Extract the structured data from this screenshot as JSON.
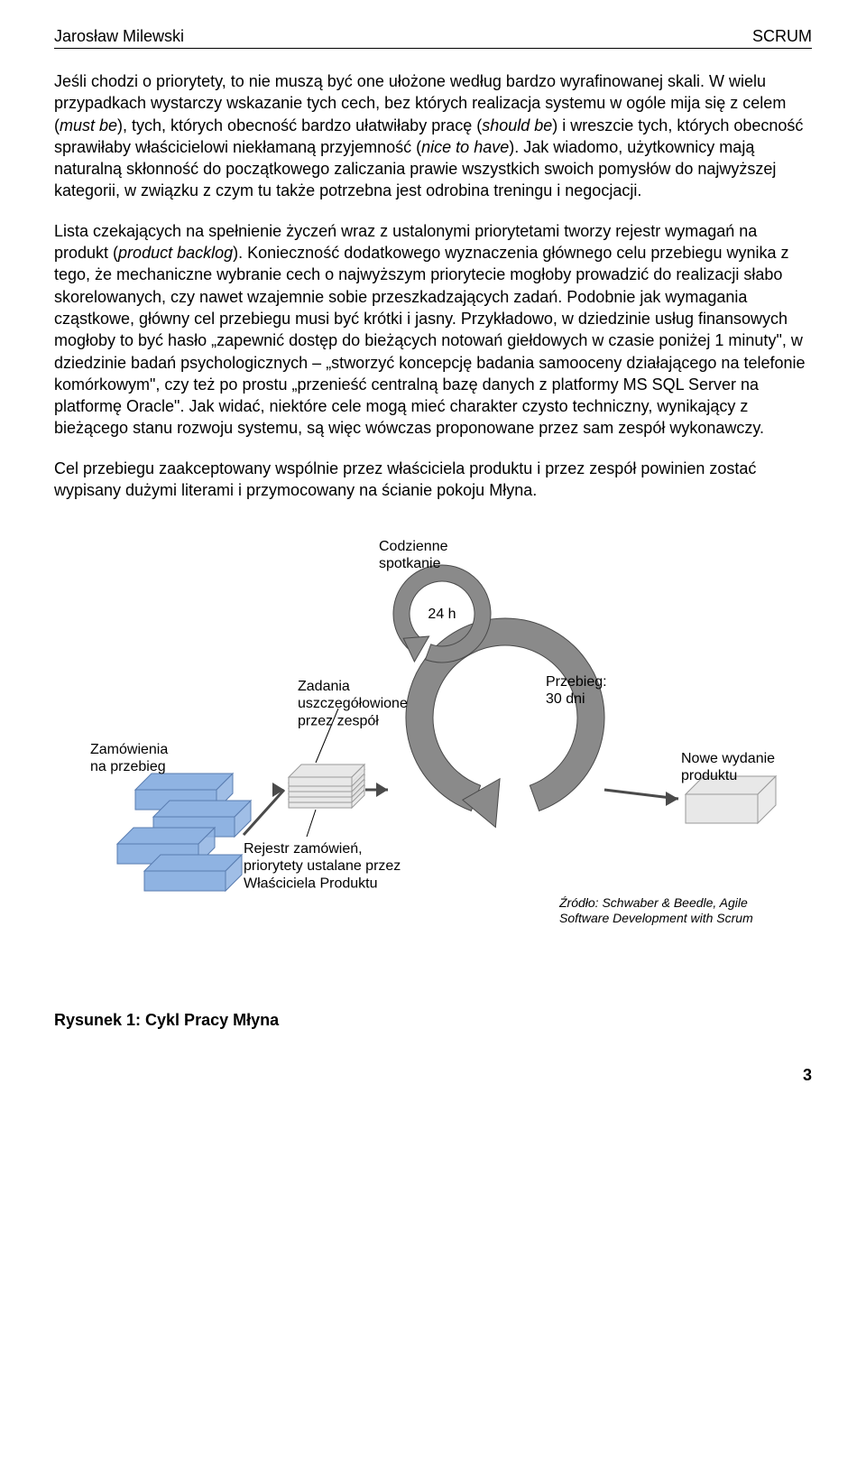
{
  "header": {
    "left": "Jarosław Milewski",
    "right": "SCRUM"
  },
  "paragraphs": {
    "p1a": "Jeśli chodzi o priorytety, to nie muszą być one ułożone według bardzo wyrafinowanej skali. W wielu przypadkach wystarczy wskazanie tych cech, bez których realizacja systemu w ogóle mija się z celem (",
    "p1_i1": "must be",
    "p1b": "), tych, których obecność bardzo ułatwiłaby pracę (",
    "p1_i2": "should be",
    "p1c": ") i wreszcie tych, których obecność sprawiłaby właścicielowi niekłamaną przyjemność (",
    "p1_i3": "nice to have",
    "p1d": "). Jak wiadomo, użytkownicy mają naturalną skłonność do początkowego zaliczania prawie wszystkich swoich pomysłów do najwyższej kategorii, w związku z czym tu także potrzebna jest odrobina treningu i negocjacji.",
    "p2a": "Lista czekających na spełnienie życzeń wraz z ustalonymi priorytetami tworzy rejestr wymagań na produkt (",
    "p2_i1": "product backlog",
    "p2b": "). Konieczność dodatkowego wyznaczenia głównego celu przebiegu wynika z tego, że mechaniczne wybranie cech o najwyższym priorytecie mogłoby prowadzić do realizacji słabo skorelowanych, czy nawet wzajemnie sobie przeszkadzających zadań. Podobnie jak wymagania cząstkowe, główny cel przebiegu musi być krótki i jasny. Przykładowo, w dziedzinie usług finansowych mogłoby to być hasło „zapewnić dostęp do bieżących notowań giełdowych w czasie poniżej 1 minuty\", w dziedzinie badań psychologicznych – „stworzyć koncepcję badania samooceny działającego na telefonie komórkowym\", czy też po prostu „przenieść centralną bazę danych z platformy MS SQL Server na platformę Oracle\". Jak widać, niektóre cele mogą mieć charakter czysto techniczny, wynikający z bieżącego stanu rozwoju systemu, są więc wówczas proponowane przez sam zespół wykonawczy.",
    "p3": "Cel przebiegu zaakceptowany wspólnie przez właściciela produktu i przez zespół powinien zostać wypisany dużymi literami i przymocowany na ścianie pokoju Młyna."
  },
  "diagram": {
    "colors": {
      "arrow_fill": "#8a8a8a",
      "arrow_stroke": "#4a4a4a",
      "box_fill_blue": "#8fb3e2",
      "box_stroke_blue": "#5a7db0",
      "box_fill_grey": "#e8e8e8",
      "box_stroke_grey": "#9a9a9a",
      "text": "#000000",
      "source_text": "#000000"
    },
    "labels": {
      "daily": "Codzienne\nspotkanie",
      "hours": "24 h",
      "tasks": "Zadania\nuszczegółowione\nprzez zespół",
      "sprint": "Przebieg:\n30 dni",
      "orders": "Zamówienia\nna przebieg",
      "release": "Nowe wydanie\nproduktu",
      "backlog": "Rejestr zamówień,\npriorytety ustalane przez\nWłaściciela Produktu",
      "source": "Źródło: Schwaber & Beedle, Agile\nSoftware Development with Scrum"
    }
  },
  "caption": "Rysunek 1:   Cykl Pracy Młyna",
  "page_number": "3"
}
